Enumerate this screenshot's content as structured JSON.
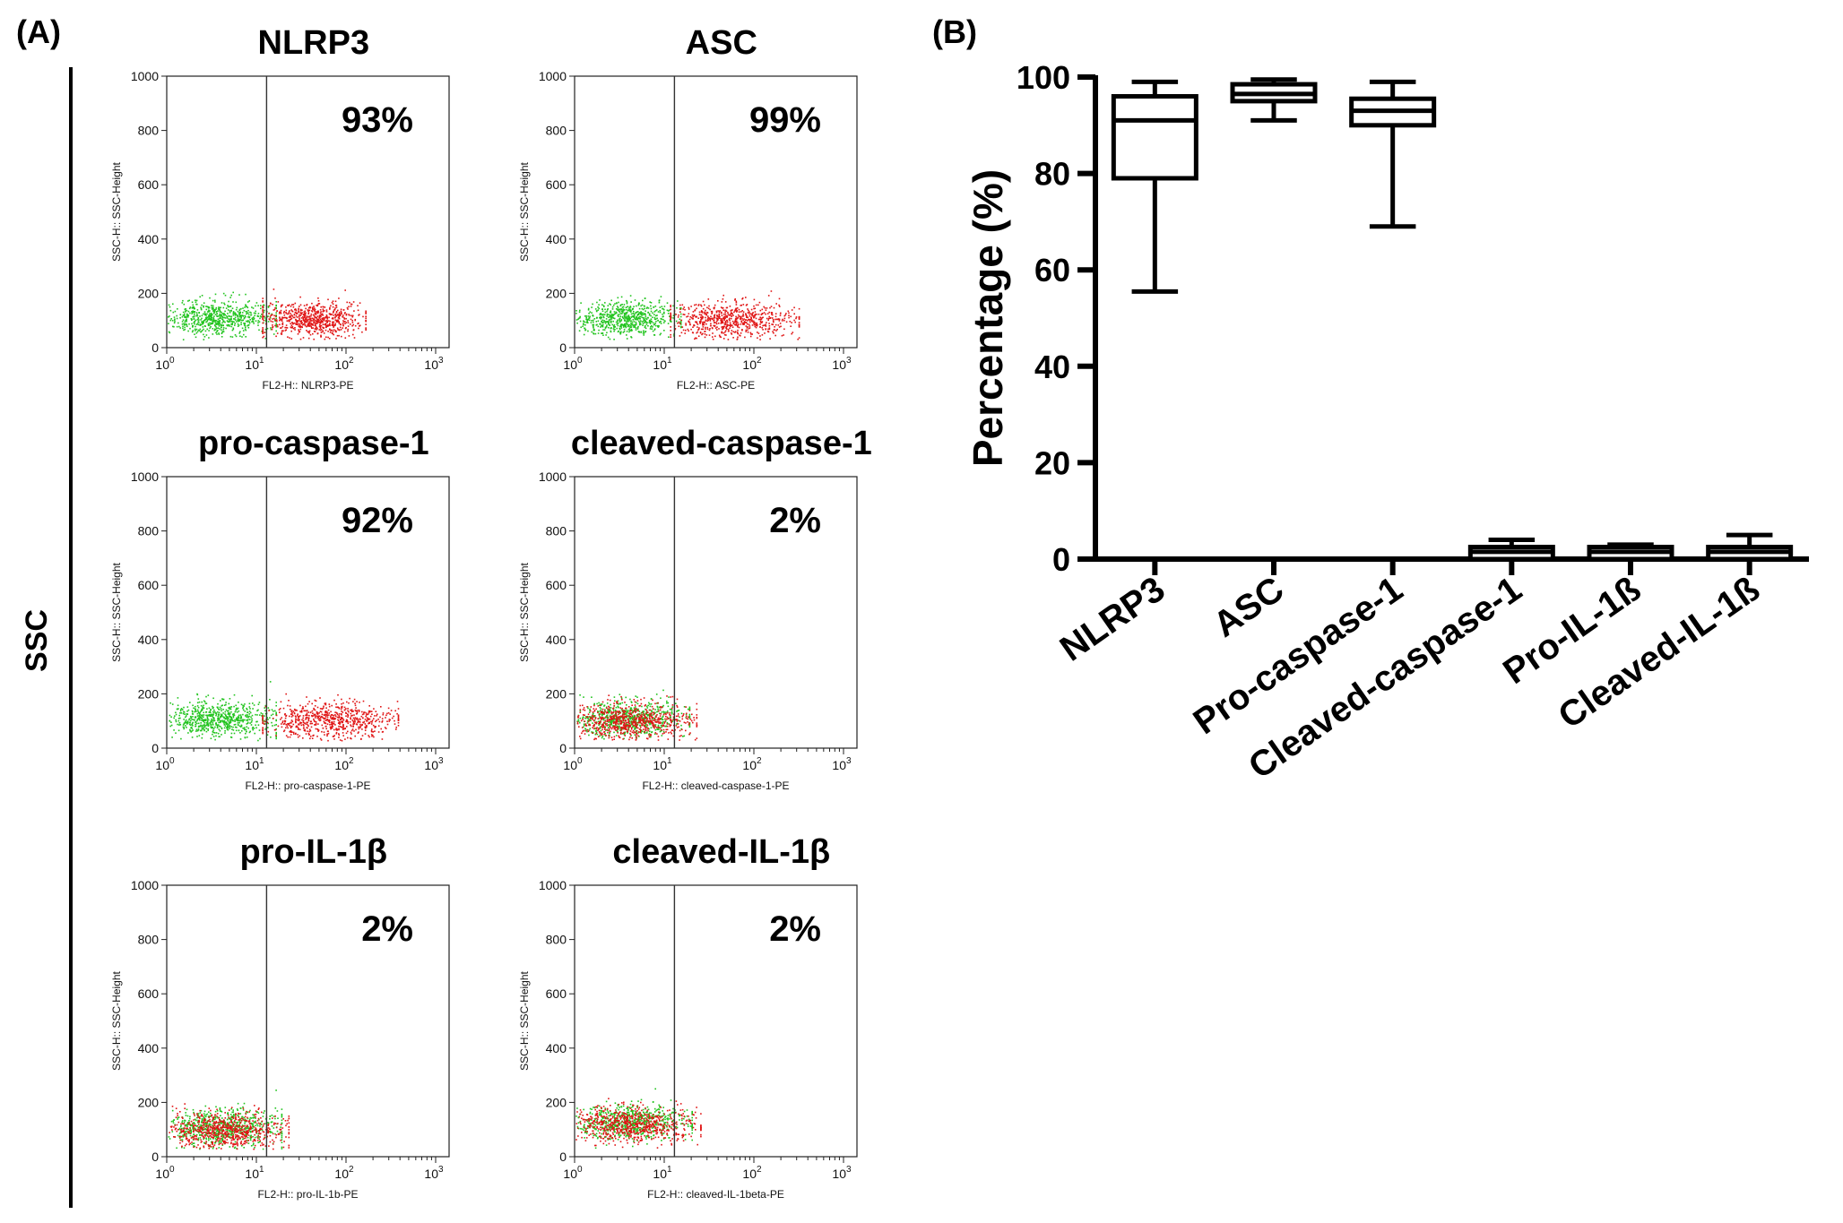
{
  "panel_a": {
    "label": "(A)",
    "y_side_label": "SSC",
    "plot_y_axis_label": "SSC-H:: SSC-Height",
    "plots": [
      {
        "title": "NLRP3",
        "percent": "93%",
        "x_axis_label": "FL2-H:: NLRP3-PE"
      },
      {
        "title": "ASC",
        "percent": "99%",
        "x_axis_label": "FL2-H:: ASC-PE"
      },
      {
        "title": "pro-caspase-1",
        "percent": "92%",
        "x_axis_label": "FL2-H:: pro-caspase-1-PE"
      },
      {
        "title": "cleaved-caspase-1",
        "percent": "2%",
        "x_axis_label": "FL2-H:: cleaved-caspase-1-PE"
      },
      {
        "title": "pro-IL-1β",
        "percent": "2%",
        "x_axis_label": "FL2-H:: pro-IL-1b-PE"
      },
      {
        "title": "cleaved-IL-1β",
        "percent": "2%",
        "x_axis_label": "FL2-H:: cleaved-IL-1beta-PE"
      }
    ]
  },
  "panel_b": {
    "label": "(B)"
  },
  "chart_data": [
    {
      "type": "scatter",
      "description": "Flow cytometry dot plots (SSC vs FL2-PE), gated; percent positive",
      "xscale": "log",
      "xlim": [
        1,
        1000
      ],
      "x_ticks": [
        "10^0",
        "10^1",
        "10^2",
        "10^3"
      ],
      "ylim": [
        0,
        1000
      ],
      "y_ticks": [
        0,
        200,
        400,
        600,
        800,
        1000
      ],
      "gate_x": 13,
      "series": [
        {
          "name": "NLRP3",
          "percent_positive": 93,
          "green": {
            "x_range": [
              1,
              13
            ],
            "y_center": 110
          },
          "red": {
            "x_range": [
              13,
              130
            ],
            "y_center": 105
          }
        },
        {
          "name": "ASC",
          "percent_positive": 99,
          "green": {
            "x_range": [
              1,
              12
            ],
            "y_center": 110
          },
          "red": {
            "x_range": [
              13,
              250
            ],
            "y_center": 105
          }
        },
        {
          "name": "pro-caspase-1",
          "percent_positive": 92,
          "green": {
            "x_range": [
              1,
              13
            ],
            "y_center": 110
          },
          "red": {
            "x_range": [
              13,
              300
            ],
            "y_center": 105
          }
        },
        {
          "name": "cleaved-caspase-1",
          "percent_positive": 2,
          "green": {
            "x_range": [
              1,
              15
            ],
            "y_center": 110
          },
          "red": {
            "x_range": [
              1,
              18
            ],
            "y_center": 105
          }
        },
        {
          "name": "pro-IL-1β",
          "percent_positive": 2,
          "green": {
            "x_range": [
              1,
              15
            ],
            "y_center": 110
          },
          "red": {
            "x_range": [
              1,
              18
            ],
            "y_center": 100
          }
        },
        {
          "name": "cleaved-IL-1β",
          "percent_positive": 2,
          "green": {
            "x_range": [
              1,
              16
            ],
            "y_center": 130
          },
          "red": {
            "x_range": [
              1,
              20
            ],
            "y_center": 120
          }
        }
      ]
    },
    {
      "type": "box",
      "categories": [
        "NLRP3",
        "ASC",
        "Pro-caspase-1",
        "Cleaved-caspase-1",
        "Pro-IL-1ß",
        "Cleaved-IL-1ß"
      ],
      "ylabel": "Percentage (%)",
      "xlabel": "",
      "ylim": [
        0,
        100
      ],
      "yticks": [
        0,
        20,
        40,
        60,
        80,
        100
      ],
      "boxes": [
        {
          "min": 55.5,
          "q1": 79,
          "median": 91,
          "q3": 96,
          "max": 99
        },
        {
          "min": 91,
          "q1": 95,
          "median": 96.5,
          "q3": 98.5,
          "max": 99.5
        },
        {
          "min": 69,
          "q1": 90,
          "median": 93,
          "q3": 95.5,
          "max": 99
        },
        {
          "min": 0,
          "q1": 0,
          "median": 1.5,
          "q3": 2.5,
          "max": 4
        },
        {
          "min": 0,
          "q1": 0,
          "median": 1.5,
          "q3": 2.5,
          "max": 3
        },
        {
          "min": 0,
          "q1": 0,
          "median": 1.5,
          "q3": 2.5,
          "max": 5
        }
      ]
    }
  ]
}
